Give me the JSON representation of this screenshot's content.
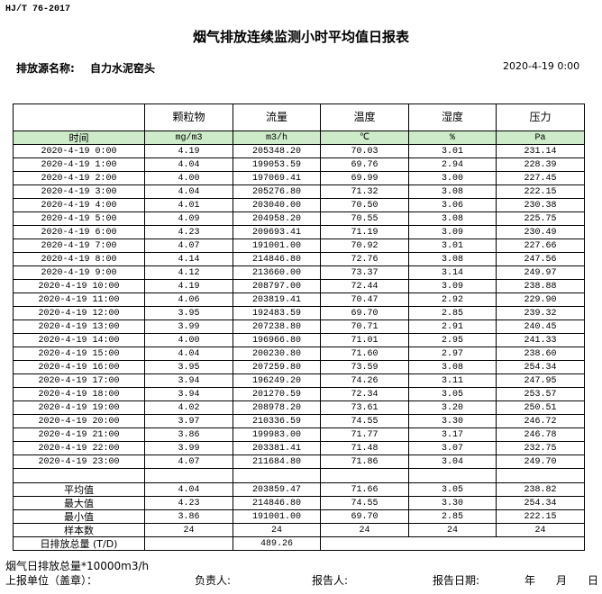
{
  "header": {
    "standard": "HJ/T 76-2017",
    "title": "烟气排放连续监测小时平均值日报表",
    "source_label": "排放源名称:",
    "source_name": "自力水泥窑头",
    "date": "2020-4-19 0:00"
  },
  "table": {
    "columns": [
      "颗粒物",
      "流量",
      "温度",
      "湿度",
      "压力"
    ],
    "units": [
      "时间",
      "mg/m3",
      "m3/h",
      "℃",
      "%",
      "Pa"
    ],
    "rows": [
      [
        "2020-4-19 0:00",
        "4.19",
        "205348.20",
        "70.03",
        "3.01",
        "231.14"
      ],
      [
        "2020-4-19 1:00",
        "4.04",
        "199053.59",
        "69.76",
        "2.94",
        "228.39"
      ],
      [
        "2020-4-19 2:00",
        "4.00",
        "197069.41",
        "69.99",
        "3.00",
        "227.45"
      ],
      [
        "2020-4-19 3:00",
        "4.04",
        "205276.80",
        "71.32",
        "3.08",
        "222.15"
      ],
      [
        "2020-4-19 4:00",
        "4.01",
        "203040.00",
        "70.50",
        "3.06",
        "230.38"
      ],
      [
        "2020-4-19 5:00",
        "4.09",
        "204958.20",
        "70.55",
        "3.08",
        "225.75"
      ],
      [
        "2020-4-19 6:00",
        "4.23",
        "209693.41",
        "71.19",
        "3.09",
        "230.49"
      ],
      [
        "2020-4-19 7:00",
        "4.07",
        "191001.00",
        "70.92",
        "3.01",
        "227.66"
      ],
      [
        "2020-4-19 8:00",
        "4.14",
        "214846.80",
        "72.76",
        "3.08",
        "247.56"
      ],
      [
        "2020-4-19 9:00",
        "4.12",
        "213660.00",
        "73.37",
        "3.14",
        "249.97"
      ],
      [
        "2020-4-19 10:00",
        "4.19",
        "208797.00",
        "72.44",
        "3.09",
        "238.88"
      ],
      [
        "2020-4-19 11:00",
        "4.06",
        "203819.41",
        "70.47",
        "2.92",
        "229.90"
      ],
      [
        "2020-4-19 12:00",
        "3.95",
        "192483.59",
        "69.70",
        "2.85",
        "239.32"
      ],
      [
        "2020-4-19 13:00",
        "3.99",
        "207238.80",
        "70.71",
        "2.91",
        "240.45"
      ],
      [
        "2020-4-19 14:00",
        "4.00",
        "196966.80",
        "71.01",
        "2.95",
        "241.33"
      ],
      [
        "2020-4-19 15:00",
        "4.04",
        "200230.80",
        "71.60",
        "2.97",
        "238.60"
      ],
      [
        "2020-4-19 16:00",
        "3.95",
        "207259.80",
        "73.59",
        "3.08",
        "254.34"
      ],
      [
        "2020-4-19 17:00",
        "3.94",
        "196249.20",
        "74.26",
        "3.11",
        "247.95"
      ],
      [
        "2020-4-19 18:00",
        "3.94",
        "201270.59",
        "72.34",
        "3.05",
        "253.57"
      ],
      [
        "2020-4-19 19:00",
        "4.02",
        "208978.20",
        "73.61",
        "3.20",
        "250.51"
      ],
      [
        "2020-4-19 20:00",
        "3.97",
        "210336.59",
        "74.55",
        "3.30",
        "246.72"
      ],
      [
        "2020-4-19 21:00",
        "3.86",
        "199983.00",
        "71.77",
        "3.17",
        "246.78"
      ],
      [
        "2020-4-19 22:00",
        "3.99",
        "203381.41",
        "71.48",
        "3.07",
        "232.75"
      ],
      [
        "2020-4-19 23:00",
        "4.07",
        "211684.80",
        "71.86",
        "3.04",
        "249.70"
      ]
    ],
    "summary": [
      [
        "平均值",
        "4.04",
        "203859.47",
        "71.66",
        "3.05",
        "238.82"
      ],
      [
        "最大值",
        "4.23",
        "214846.80",
        "74.55",
        "3.30",
        "254.34"
      ],
      [
        "最小值",
        "3.86",
        "191001.00",
        "69.70",
        "2.85",
        "222.15"
      ],
      [
        "样本数",
        "24",
        "24",
        "24",
        "24",
        "24"
      ]
    ],
    "total_label": "日排放总量 (T/D)",
    "total_value": "489.26"
  },
  "footer": {
    "note": "烟气日排放总量*10000m3/h",
    "unit": "上报单位（盖章）：",
    "manager": "负责人:",
    "reporter": "报告人:",
    "report_date": "报告日期:",
    "year": "年",
    "month": "月",
    "day": "日"
  }
}
